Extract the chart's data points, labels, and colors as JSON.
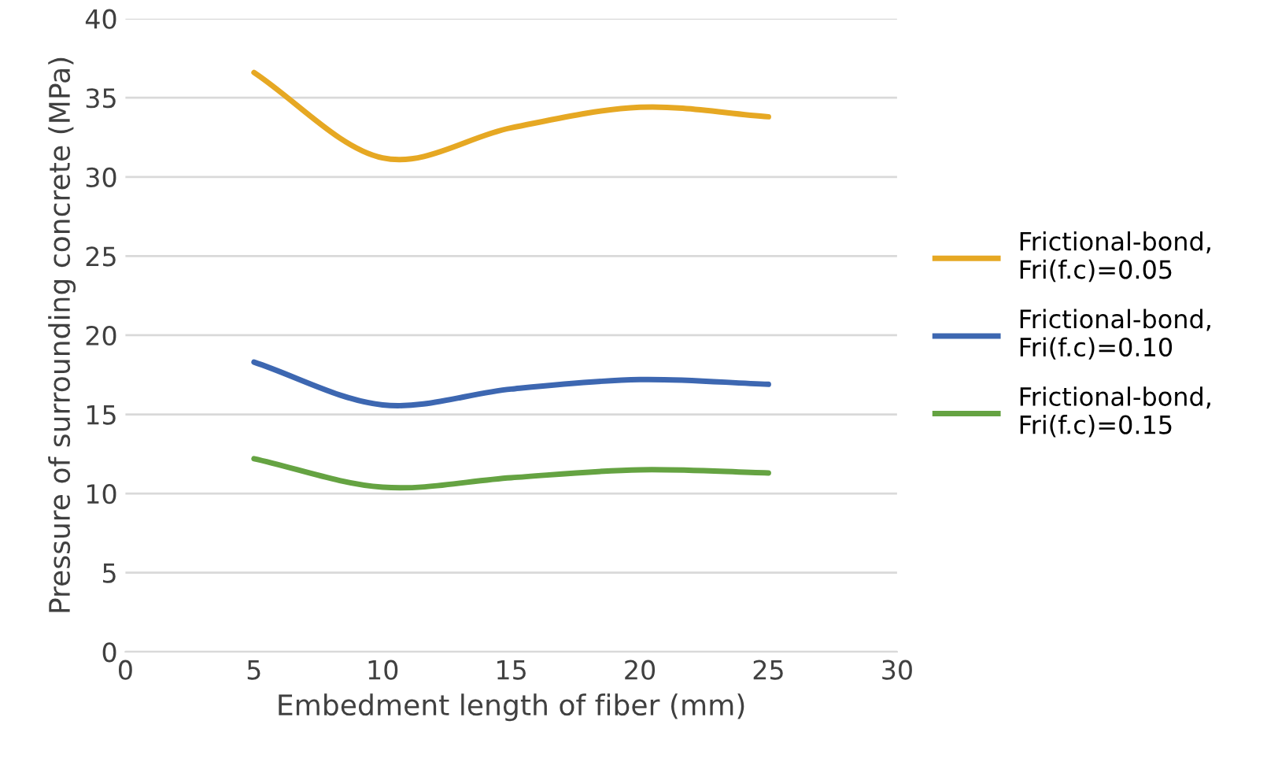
{
  "chart_data": {
    "type": "line",
    "xlabel": "Embedment length of fiber (mm)",
    "ylabel": "Pressure of surrounding concrete (MPa)",
    "x": [
      5,
      10,
      15,
      20,
      25
    ],
    "series": [
      {
        "name": "Frictional-bond, Fri(f.c)=0.05",
        "color": "#e6a823",
        "values": [
          36.6,
          31.2,
          33.1,
          34.4,
          33.8
        ]
      },
      {
        "name": "Frictional-bond, Fri(f.c)=0.10",
        "color": "#3d67b1",
        "values": [
          18.3,
          15.6,
          16.6,
          17.2,
          16.9
        ]
      },
      {
        "name": "Frictional-bond, Fri(f.c)=0.15",
        "color": "#65a342",
        "values": [
          12.2,
          10.4,
          11.0,
          11.5,
          11.3
        ]
      }
    ],
    "xlim": [
      0,
      30
    ],
    "xticks": [
      0,
      5,
      10,
      15,
      20,
      25,
      30
    ],
    "ylim": [
      0,
      40
    ],
    "yticks": [
      0,
      5,
      10,
      15,
      20,
      25,
      30,
      35,
      40
    ],
    "grid": "y",
    "legend": "right",
    "marker": "none",
    "line_style": "solid"
  }
}
